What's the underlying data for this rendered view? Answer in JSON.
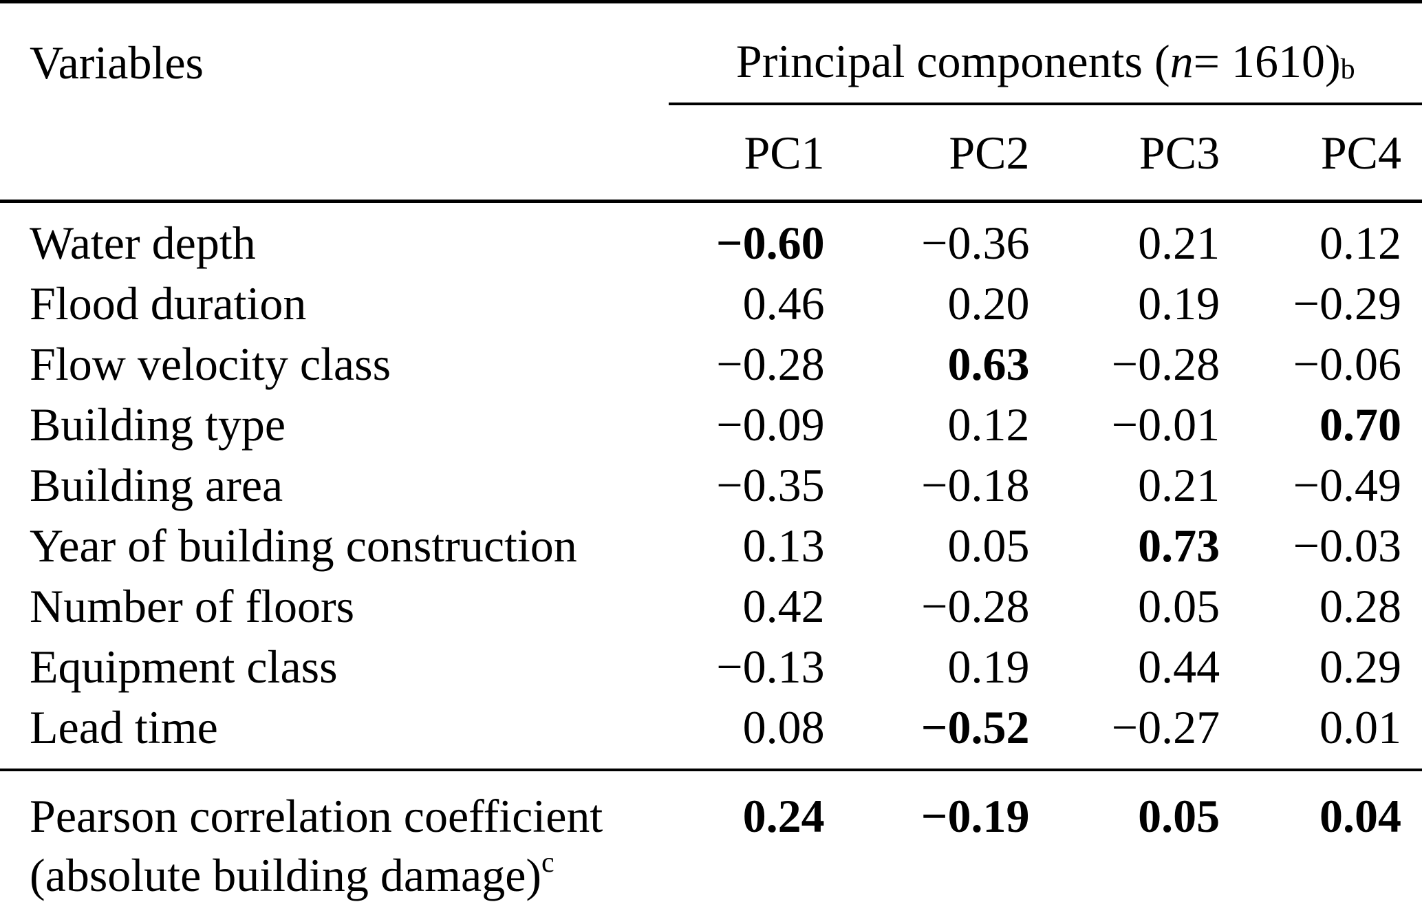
{
  "table": {
    "header": {
      "variables_label": "Variables",
      "group": {
        "prefix": "Principal components (",
        "n_symbol": "n",
        "suffix": " = 1610)",
        "superscript": "b"
      },
      "pc_columns": [
        "PC1",
        "PC2",
        "PC3",
        "PC4"
      ]
    },
    "rows": [
      {
        "label": "Water depth",
        "pc1": "−0.60",
        "pc2": "−0.36",
        "pc3": "0.21",
        "pc4": "0.12"
      },
      {
        "label": "Flood duration",
        "pc1": "0.46",
        "pc2": "0.20",
        "pc3": "0.19",
        "pc4": "−0.29"
      },
      {
        "label": "Flow velocity class",
        "pc1": "−0.28",
        "pc2": "0.63",
        "pc3": "−0.28",
        "pc4": "−0.06"
      },
      {
        "label": "Building type",
        "pc1": "−0.09",
        "pc2": "0.12",
        "pc3": "−0.01",
        "pc4": "0.70"
      },
      {
        "label": "Building area",
        "pc1": "−0.35",
        "pc2": "−0.18",
        "pc3": "0.21",
        "pc4": "−0.49"
      },
      {
        "label": "Year of building construction",
        "pc1": "0.13",
        "pc2": "0.05",
        "pc3": "0.73",
        "pc4": "−0.03"
      },
      {
        "label": "Number of floors",
        "pc1": "0.42",
        "pc2": "−0.28",
        "pc3": "0.05",
        "pc4": "0.28"
      },
      {
        "label": "Equipment class",
        "pc1": "−0.13",
        "pc2": "0.19",
        "pc3": "0.44",
        "pc4": "0.29"
      },
      {
        "label": "Lead time",
        "pc1": "0.08",
        "pc2": "−0.52",
        "pc3": "−0.27",
        "pc4": "0.01"
      }
    ],
    "footer": {
      "label_line1": "Pearson correlation coefficient",
      "label_line2": "(absolute building damage)",
      "superscript": "c",
      "pc1": "0.24",
      "pc2": "−0.19",
      "pc3": "0.05",
      "pc4": "0.04"
    }
  },
  "colors": {
    "text": "#000000",
    "background": "#ffffff",
    "rule": "#000000"
  }
}
